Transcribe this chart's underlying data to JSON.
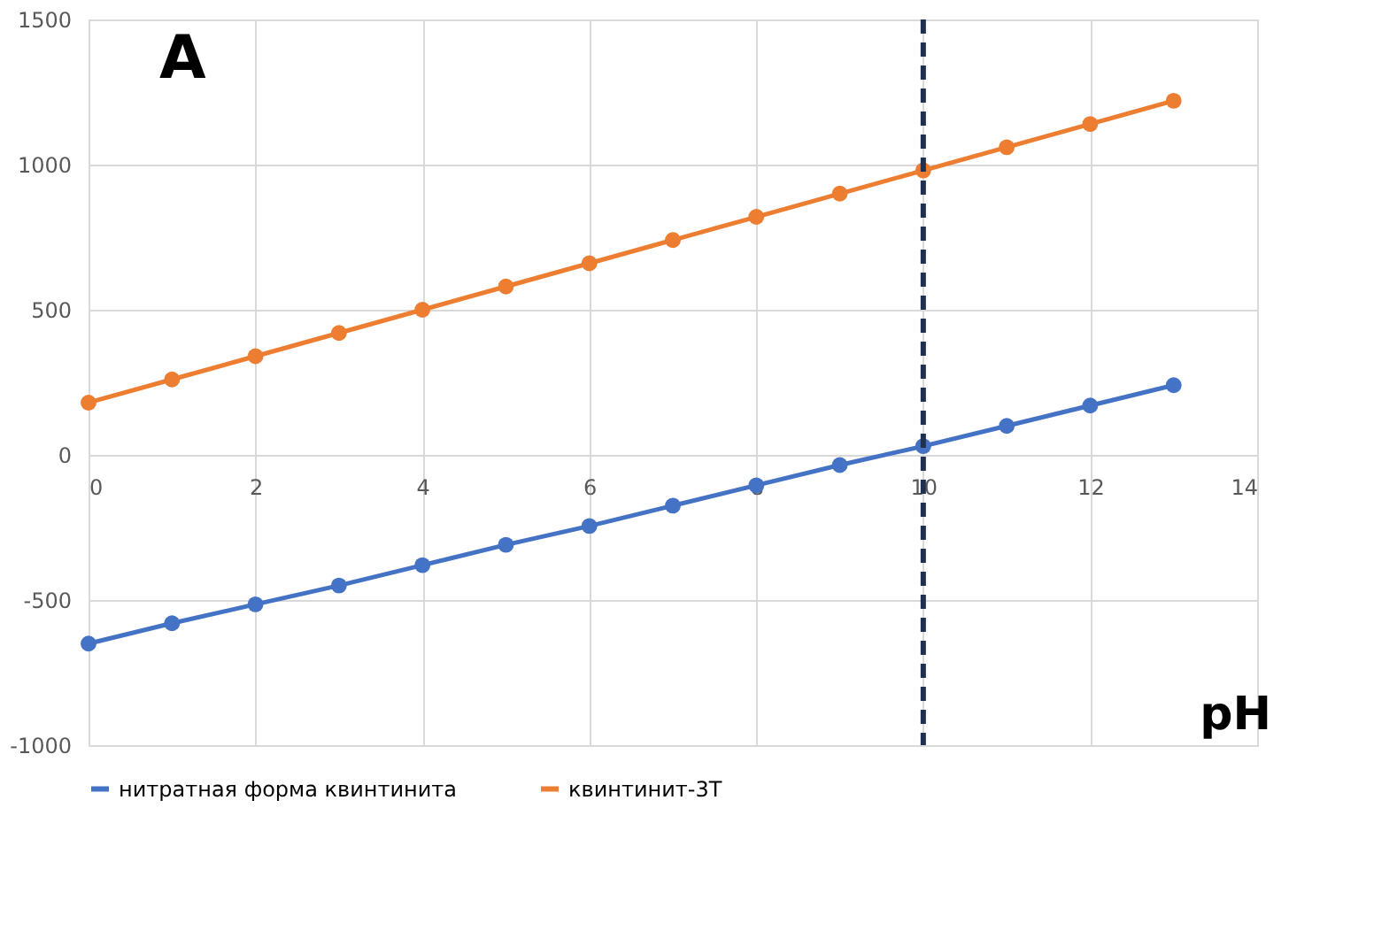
{
  "chart_data": {
    "type": "line",
    "xlabel": "pH",
    "annotations": [
      "A"
    ],
    "x": [
      0,
      1,
      2,
      3,
      4,
      5,
      6,
      7,
      8,
      9,
      10,
      11,
      12,
      13
    ],
    "series": [
      {
        "name": "нитратная форма квинтинита",
        "color": "#4472c4",
        "values": [
          -650,
          -580,
          -515,
          -450,
          -380,
          -310,
          -245,
          -175,
          -105,
          -35,
          30,
          100,
          170,
          240
        ]
      },
      {
        "name": "квинтинит-3T",
        "color": "#ed7d31",
        "values": [
          180,
          260,
          340,
          420,
          500,
          580,
          660,
          740,
          820,
          900,
          980,
          1060,
          1140,
          1220
        ]
      }
    ],
    "xlim": [
      0,
      14
    ],
    "xticks": [
      0,
      2,
      4,
      6,
      8,
      10,
      12,
      14
    ],
    "ylim": [
      -1000,
      1500
    ],
    "yticks": [
      -1000,
      -500,
      0,
      500,
      1000,
      1500
    ],
    "ref_lines": [
      {
        "axis": "x",
        "value": 10,
        "color": "#1f3050",
        "line_style": "dashed"
      }
    ],
    "grid": true,
    "legend": "bottom",
    "marker": "circle",
    "line_style": "solid"
  }
}
